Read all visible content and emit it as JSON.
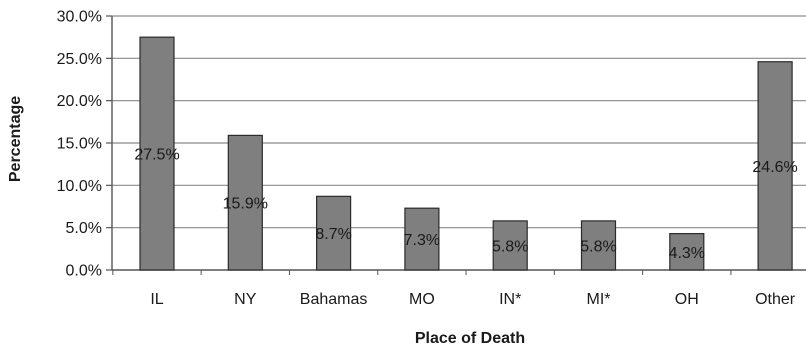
{
  "chart_data": {
    "type": "bar",
    "categories": [
      "IL",
      "NY",
      "Bahamas",
      "MO",
      "IN*",
      "MI*",
      "OH",
      "Other"
    ],
    "values": [
      27.5,
      15.9,
      8.7,
      7.3,
      5.8,
      5.8,
      4.3,
      24.6
    ],
    "data_labels": [
      "27.5%",
      "15.9%",
      "8.7%",
      "7.3%",
      "5.8%",
      "5.8%",
      "4.3%",
      "24.6%"
    ],
    "xlabel": "Place of Death",
    "ylabel": "Percentage",
    "ylim": [
      0,
      30
    ],
    "yticks": [
      0,
      5,
      10,
      15,
      20,
      25,
      30
    ],
    "ytick_labels": [
      "0.0%",
      "5.0%",
      "10.0%",
      "15.0%",
      "20.0%",
      "25.0%",
      "30.0%"
    ],
    "grid": true,
    "colors": {
      "bar_fill": "#7f7f7f",
      "bar_stroke": "#2b2b2b",
      "grid": "#8a8a8a",
      "axis": "#555555"
    }
  }
}
